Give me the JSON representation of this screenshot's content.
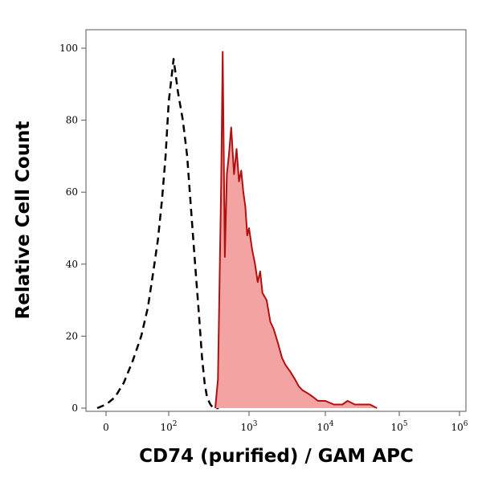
{
  "chart_data": {
    "type": "area",
    "title": "",
    "xlabel": "CD74 (purified) / GAM APC",
    "ylabel": "Relative Cell Count",
    "xscale": "biexponential",
    "ylim": [
      0,
      100
    ],
    "y_ticks": [
      "0",
      "20",
      "40",
      "60",
      "80",
      "100"
    ],
    "x_ticks": [
      {
        "base": "0",
        "exp": ""
      },
      {
        "base": "10",
        "exp": "2"
      },
      {
        "base": "10",
        "exp": "3"
      },
      {
        "base": "10",
        "exp": "4"
      },
      {
        "base": "10",
        "exp": "5"
      },
      {
        "base": "10",
        "exp": "6"
      }
    ],
    "grid": false,
    "legend": "none",
    "series": [
      {
        "style": "dashed",
        "color": "#000000",
        "x": [
          -10,
          0,
          10,
          20,
          30,
          40,
          50,
          60,
          70,
          80,
          90,
          100,
          115,
          130,
          150,
          170,
          190,
          210,
          240,
          260,
          280,
          300,
          330,
          360,
          390,
          420
        ],
        "y": [
          0,
          1,
          3,
          7,
          13,
          20,
          28,
          38,
          47,
          58,
          70,
          85,
          97,
          88,
          80,
          70,
          55,
          42,
          25,
          14,
          7,
          3,
          1,
          0,
          0,
          0
        ]
      },
      {
        "style": "filled",
        "color": "#b01010",
        "fill": "#f4a3a3",
        "x": [
          380,
          410,
          450,
          470,
          500,
          530,
          560,
          600,
          650,
          700,
          750,
          800,
          850,
          900,
          950,
          1000,
          1100,
          1200,
          1300,
          1400,
          1500,
          1700,
          1900,
          2100,
          2400,
          2700,
          3000,
          3500,
          4000,
          4500,
          5000,
          6000,
          7000,
          8000,
          10000,
          13000,
          17000,
          20000,
          25000,
          30000,
          40000,
          50000
        ],
        "y": [
          0,
          8,
          62,
          99,
          42,
          65,
          70,
          78,
          65,
          72,
          63,
          66,
          60,
          56,
          48,
          50,
          44,
          40,
          35,
          38,
          32,
          30,
          24,
          22,
          18,
          14,
          12,
          10,
          8,
          6,
          5,
          4,
          3,
          2,
          2,
          1,
          1,
          2,
          1,
          1,
          1,
          0
        ]
      }
    ]
  }
}
